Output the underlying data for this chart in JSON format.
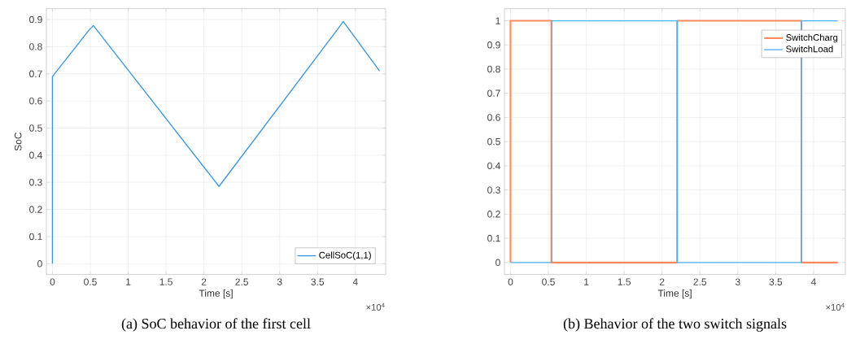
{
  "chart_data": [
    {
      "type": "line",
      "xlabel": "Time [s]",
      "ylabel": "SoC",
      "annotations": [
        "×10$^{4}$",
        "(a) SoC behavior of the first cell"
      ],
      "xlim": [
        -0.08,
        4.4
      ],
      "ylim": [
        -0.04,
        0.94
      ],
      "xticks": [
        0,
        0.5,
        1,
        1.5,
        2,
        2.5,
        3,
        3.5,
        4
      ],
      "yticks": [
        0,
        0.1,
        0.2,
        0.3,
        0.4,
        0.5,
        0.6,
        0.7,
        0.8,
        0.9
      ],
      "grid": true,
      "legend": "bottom right",
      "series": [
        {
          "name": "CellSoC(1,1)",
          "color": "#3a96d8",
          "x": [
            0,
            0,
            0.48,
            0.54,
            2.2,
            3.78,
            3.84,
            4.32
          ],
          "values": [
            0,
            0.69,
            0.86,
            0.878,
            0.285,
            0.87,
            0.893,
            0.71
          ]
        }
      ]
    },
    {
      "type": "step",
      "xlabel": "Time [s]",
      "annotations": [
        "×10$^{4}$",
        "(b) Behavior of the two switch signals"
      ],
      "xlim": [
        -0.08,
        4.42
      ],
      "ylim": [
        -0.05,
        1.05
      ],
      "xticks": [
        0,
        0.5,
        1,
        1.5,
        2,
        2.5,
        3,
        3.5,
        4
      ],
      "yticks": [
        0,
        0.1,
        0.2,
        0.3,
        0.4,
        0.5,
        0.6,
        0.7,
        0.8,
        0.9,
        1
      ],
      "grid": true,
      "legend": "top right",
      "series": [
        {
          "name": "SwitchCharg",
          "color": "#ff8a5c",
          "x": [
            0,
            0,
            0.54,
            2.2,
            3.84,
            4.32
          ],
          "values": [
            0,
            1,
            0,
            1,
            0,
            0
          ]
        },
        {
          "name": "SwitchLoad",
          "color": "#4db0f2",
          "x": [
            0,
            0,
            0.54,
            2.2,
            3.84,
            4.32
          ],
          "values": [
            0,
            0,
            1,
            0,
            1,
            1
          ]
        }
      ]
    }
  ]
}
